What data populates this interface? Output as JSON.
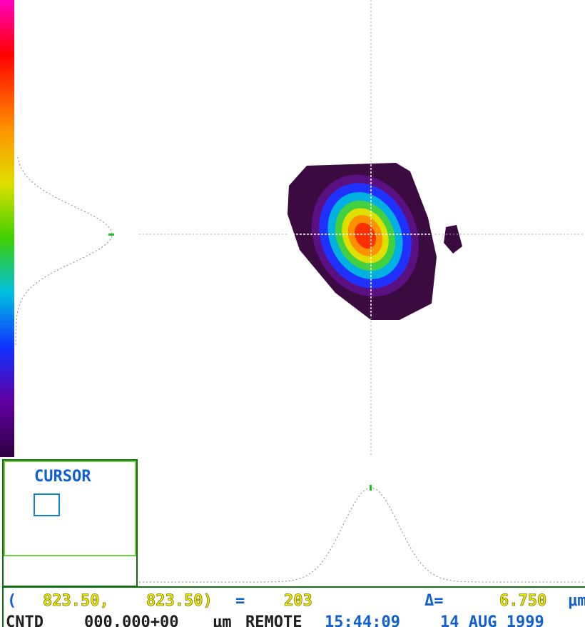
{
  "cursor_panel": {
    "title": "CURSOR"
  },
  "status_line": {
    "open": "(",
    "x": "823.50,",
    "y": "823.50)",
    "equals": "=",
    "value": "203",
    "delta": "Δ=",
    "delta_value": "6.750",
    "unit": "μm"
  },
  "info_line": {
    "mode": "CNTD",
    "position": "000.000+00",
    "unit": "μm",
    "control": "REMOTE",
    "time": "15:44:09",
    "date": "14 AUG 1999"
  }
}
